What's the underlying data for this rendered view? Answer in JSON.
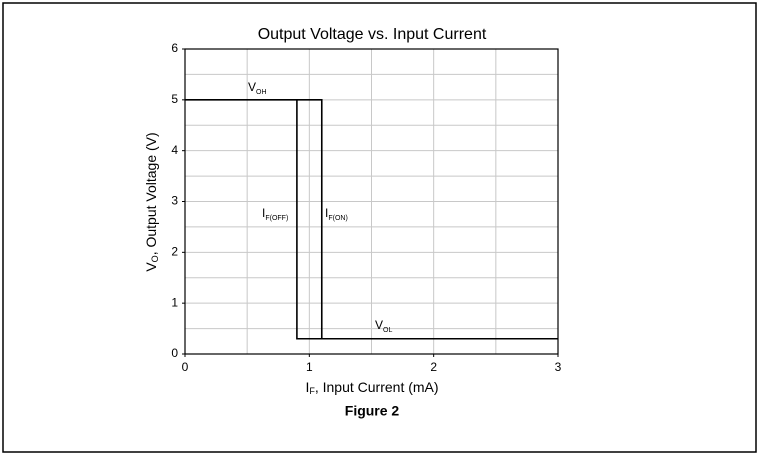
{
  "chart_data": {
    "type": "line",
    "title": "Output Voltage vs. Input Current",
    "x_label": {
      "main": "I",
      "sub": "F",
      "rest": ", Input Current (mA)"
    },
    "y_label": {
      "main": "V",
      "sub": "O",
      "rest": ", Output Voltage (V)"
    },
    "caption": "Figure 2",
    "xlim": [
      0,
      3
    ],
    "xticks": [
      0,
      1,
      2,
      3
    ],
    "ylim": [
      0,
      6
    ],
    "yticks": [
      0,
      1,
      2,
      3,
      4,
      5,
      6
    ],
    "grid": true,
    "xgrid": [
      0.5,
      1,
      1.5,
      2,
      2.5
    ],
    "ygrid": [
      0.5,
      1,
      1.5,
      2,
      2.5,
      3,
      3.5,
      4,
      4.5,
      5,
      5.5
    ],
    "series": [
      {
        "color": "#000000",
        "x": [
          0,
          1.1,
          1.1
        ],
        "values": [
          5,
          5,
          0.3
        ]
      },
      {
        "color": "#000000",
        "x": [
          0.9,
          0.9,
          3
        ],
        "values": [
          5,
          0.3,
          0.3
        ]
      }
    ],
    "annotations": [
      {
        "text": "V",
        "sub": "OH"
      },
      {
        "text": "I",
        "sub": "F(OFF)"
      },
      {
        "text": "I",
        "sub": "F(ON)"
      },
      {
        "text": "V",
        "sub": "OL"
      }
    ]
  }
}
